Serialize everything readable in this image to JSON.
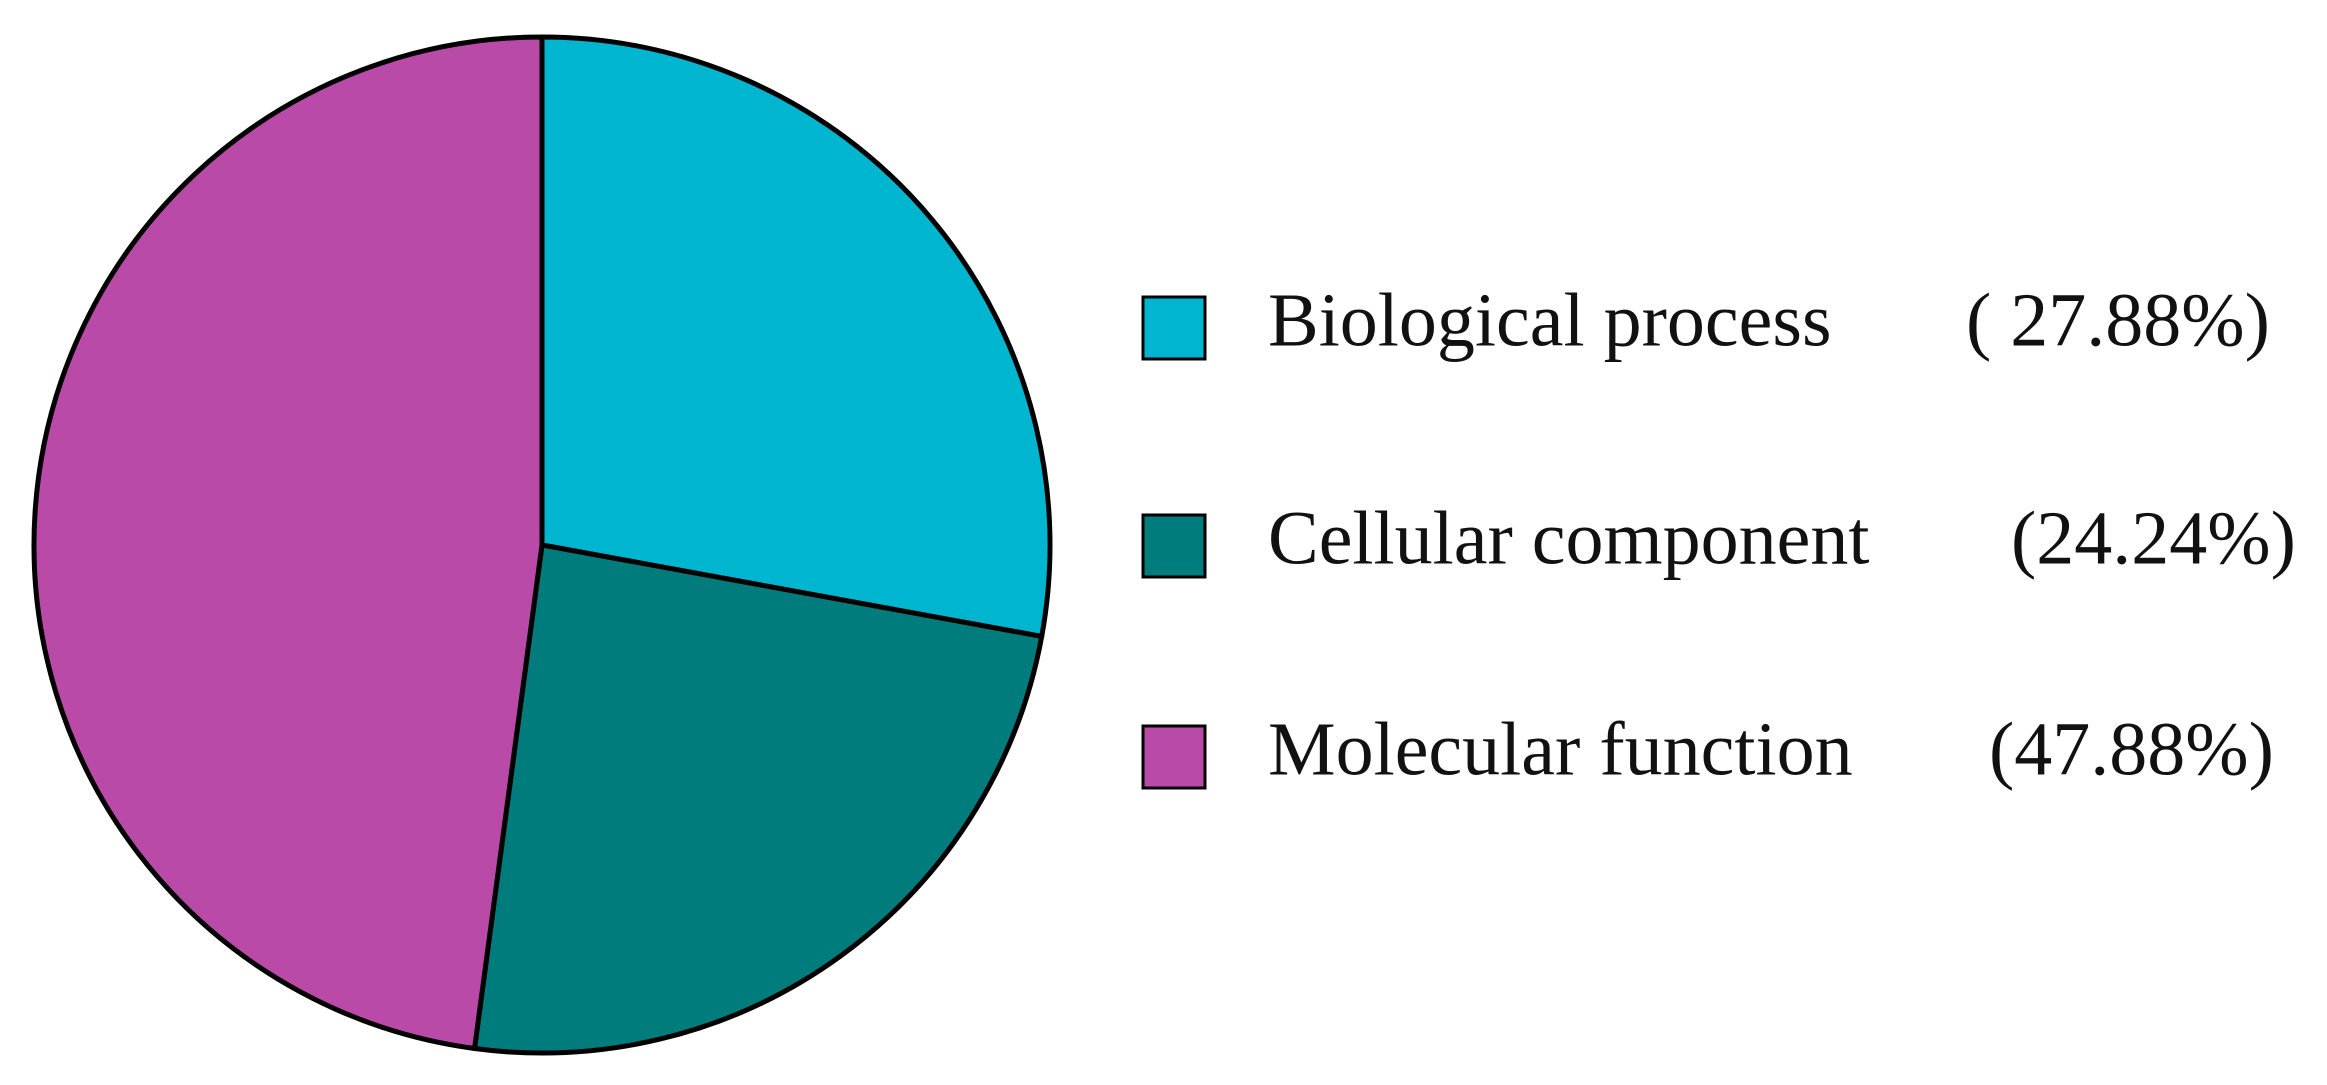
{
  "chart_data": {
    "type": "pie",
    "categories": [
      "Biological process",
      "Cellular component",
      "Molecular function"
    ],
    "values": [
      27.88,
      24.24,
      47.88
    ],
    "value_labels": [
      "( 27.88%)",
      "(24.24%)",
      "(47.88%)"
    ],
    "colors": [
      "#00b5cf",
      "#007c7c",
      "#ba4aa8"
    ]
  }
}
